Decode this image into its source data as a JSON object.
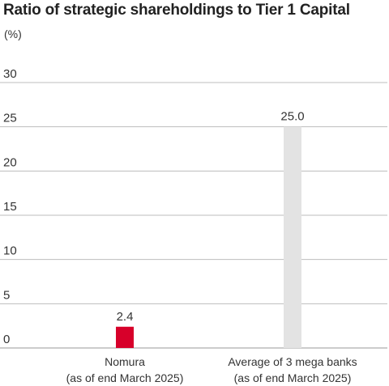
{
  "chart_data": {
    "type": "bar",
    "title": "Ratio of strategic shareholdings to Tier 1 Capital",
    "unit": "(%)",
    "categories": [
      [
        "Nomura",
        "(as of end March 2025)"
      ],
      [
        "Average of 3 mega banks",
        "(as of end March 2025)"
      ]
    ],
    "values": [
      2.4,
      25.0
    ],
    "value_labels": [
      "2.4",
      "25.0"
    ],
    "bar_colors": [
      "#d7002a",
      "#e3e3e3"
    ],
    "yticks": [
      0,
      5,
      10,
      15,
      20,
      25,
      30
    ],
    "ylim": [
      0,
      30
    ],
    "grid": true,
    "gridline_color": "#bdbdbd"
  }
}
